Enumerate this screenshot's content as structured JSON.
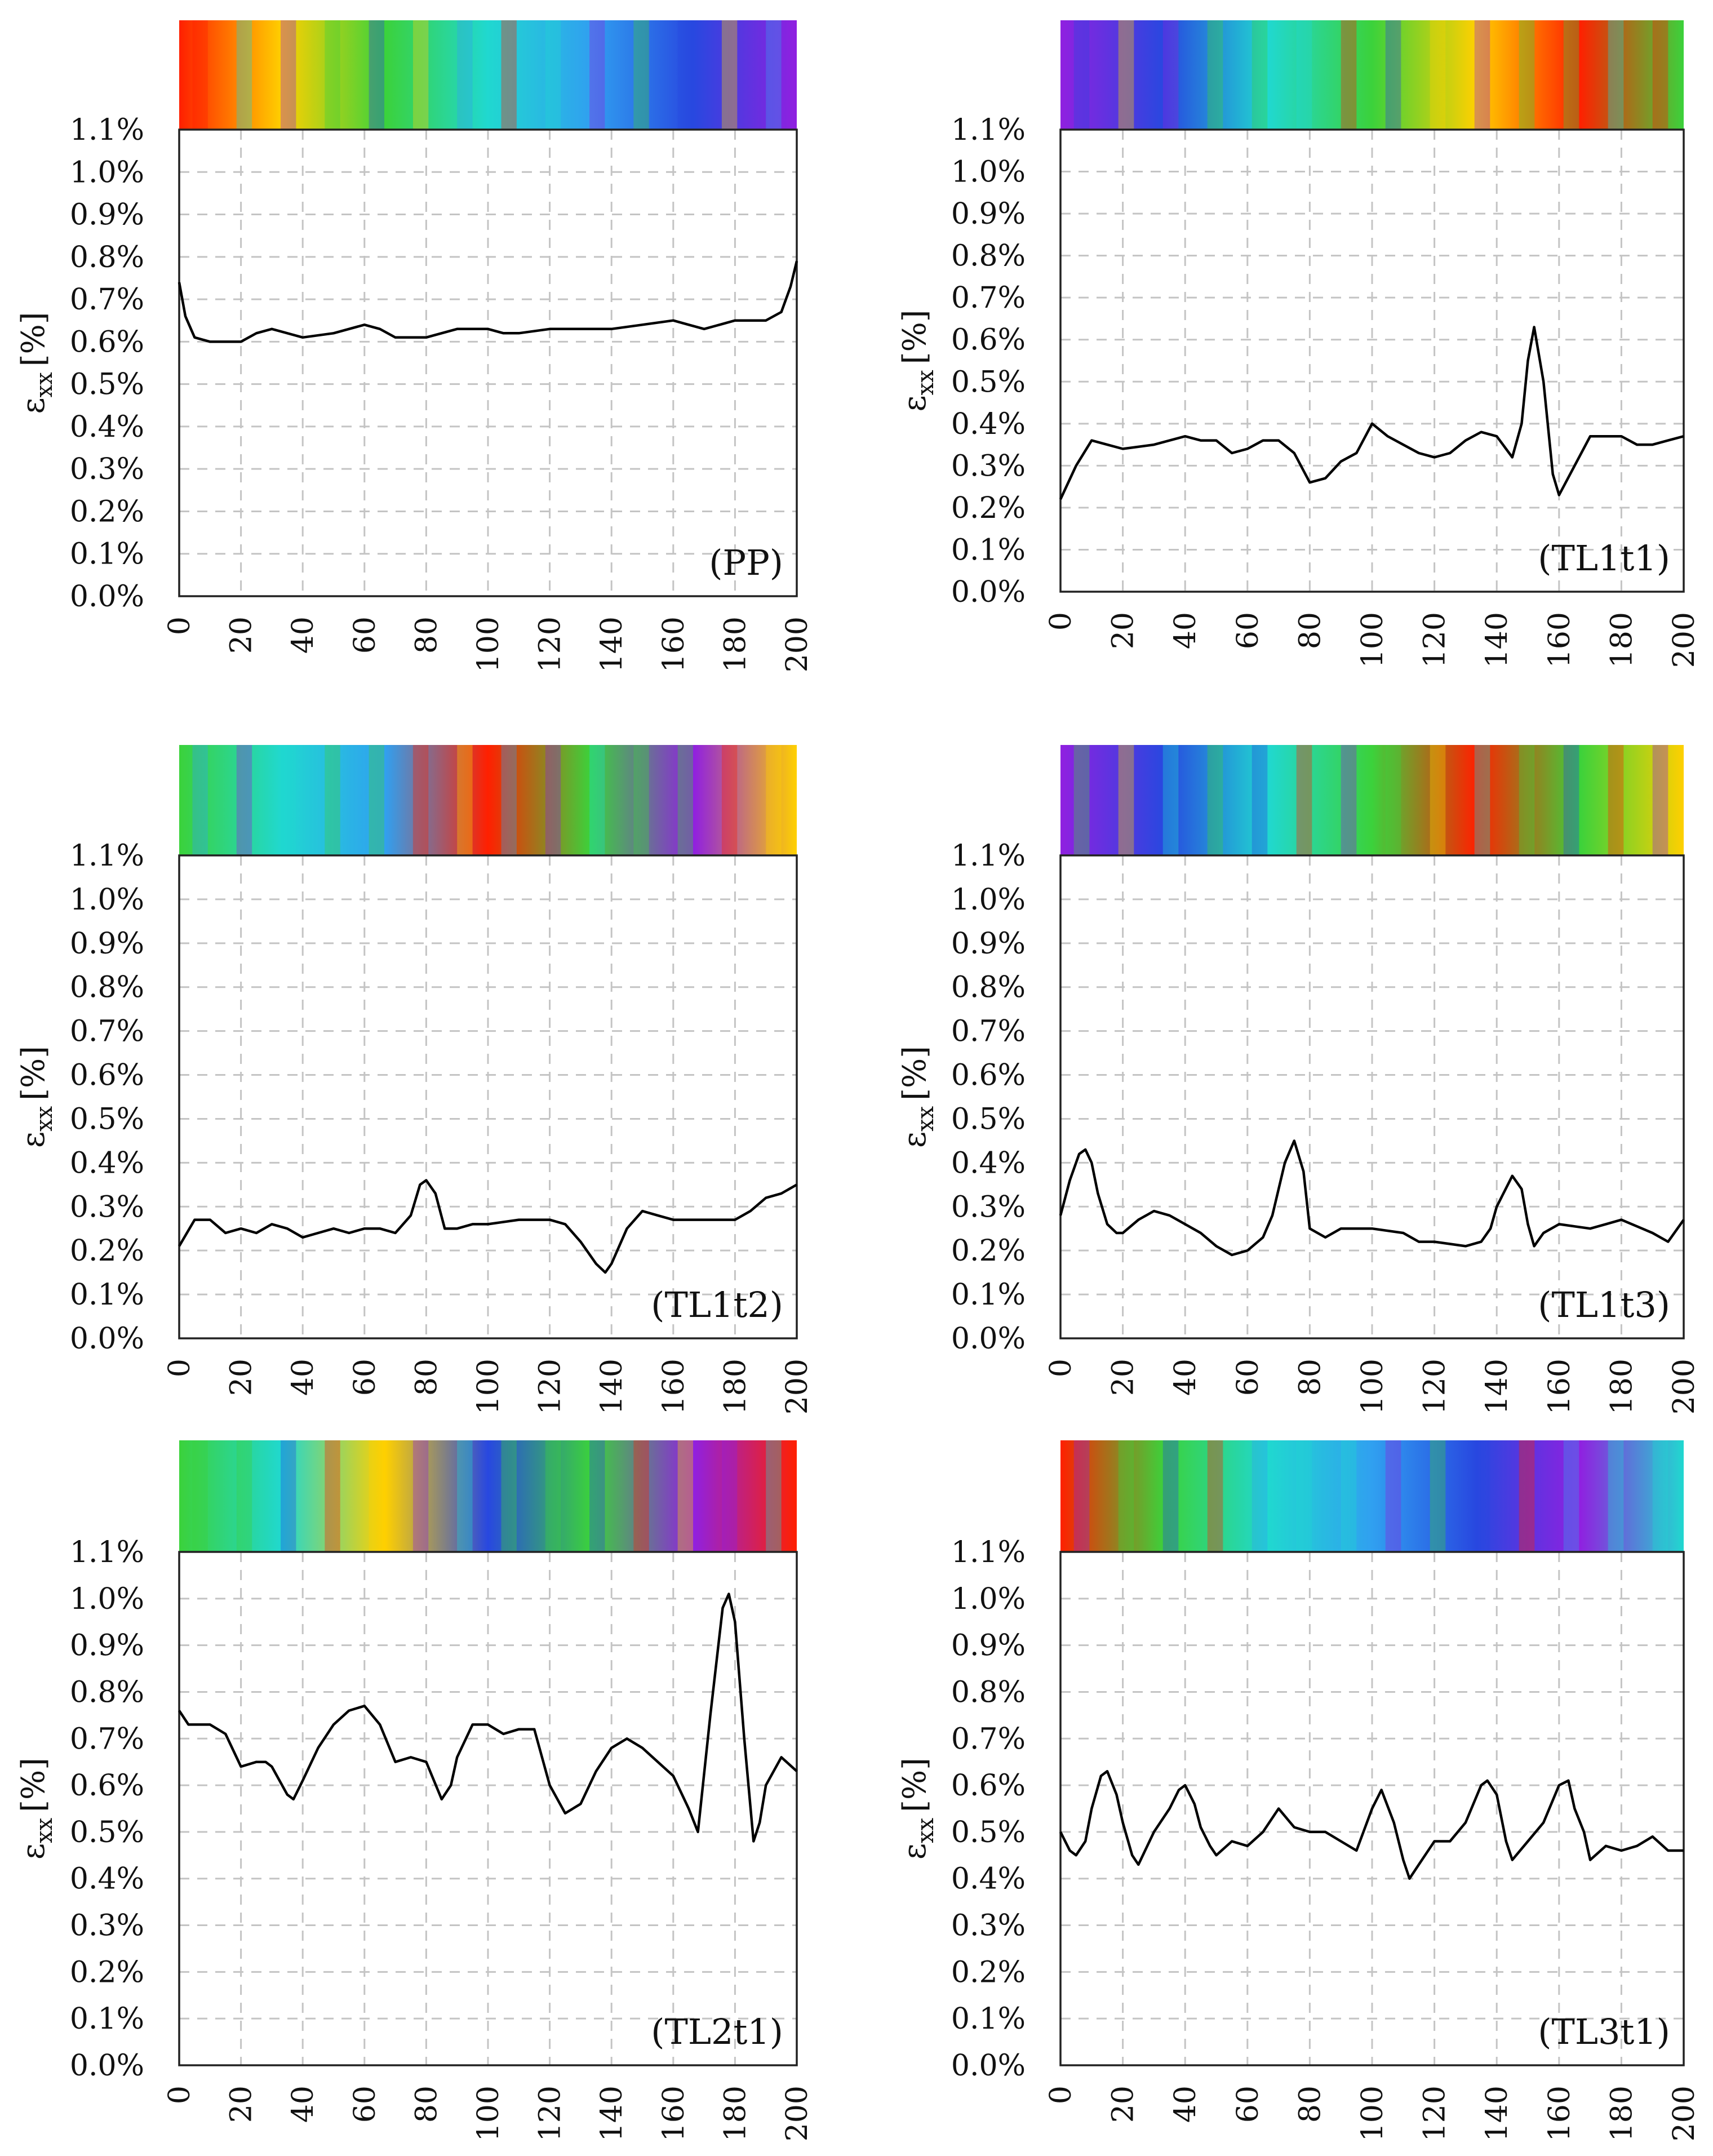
{
  "figure": {
    "panel_count": 6
  },
  "chart_data": [
    {
      "type": "line",
      "panel_label": "(PP)",
      "ylabel": "ε",
      "ylabel_sub": "xx",
      "ylabel_unit": "[%]",
      "xlim": [
        0,
        200
      ],
      "ylim": [
        0.0,
        1.1
      ],
      "x_ticks": [
        0,
        20,
        40,
        60,
        80,
        100,
        120,
        140,
        160,
        180,
        200
      ],
      "x_tick_labels": [
        "0",
        "20",
        "40",
        "60",
        "80",
        "100",
        "120",
        "140",
        "160",
        "180",
        "200"
      ],
      "y_ticks": [
        0.0,
        0.1,
        0.2,
        0.3,
        0.4,
        0.5,
        0.6,
        0.7,
        0.8,
        0.9,
        1.0,
        1.1
      ],
      "y_tick_labels": [
        "0.0%",
        "0.1%",
        "0.2%",
        "0.3%",
        "0.4%",
        "0.5%",
        "0.6%",
        "0.7%",
        "0.8%",
        "0.9%",
        "1.0%",
        "1.1%"
      ],
      "grid": true,
      "strain_map_colors": [
        "#ff2000",
        "#ffd000",
        "#3bd23b",
        "#20d8d0",
        "#30a0f0",
        "#2848e0",
        "#9020e0"
      ],
      "series": [
        {
          "name": "εxx",
          "x": [
            0,
            2,
            5,
            10,
            20,
            25,
            30,
            40,
            50,
            60,
            65,
            70,
            80,
            90,
            95,
            100,
            105,
            110,
            120,
            140,
            150,
            160,
            165,
            170,
            175,
            180,
            190,
            195,
            198,
            200
          ],
          "values": [
            0.74,
            0.66,
            0.61,
            0.6,
            0.6,
            0.62,
            0.63,
            0.61,
            0.62,
            0.64,
            0.63,
            0.61,
            0.61,
            0.63,
            0.63,
            0.63,
            0.62,
            0.62,
            0.63,
            0.63,
            0.64,
            0.65,
            0.64,
            0.63,
            0.64,
            0.65,
            0.65,
            0.67,
            0.73,
            0.79
          ]
        }
      ]
    },
    {
      "type": "line",
      "panel_label": "(TL1t1)",
      "ylabel": "ε",
      "ylabel_sub": "xx",
      "ylabel_unit": "[%]",
      "xlim": [
        0,
        200
      ],
      "ylim": [
        0.0,
        1.1
      ],
      "x_ticks": [
        0,
        20,
        40,
        60,
        80,
        100,
        120,
        140,
        160,
        180,
        200
      ],
      "x_tick_labels": [
        "0",
        "20",
        "40",
        "60",
        "80",
        "100",
        "120",
        "140",
        "160",
        "180",
        "200"
      ],
      "y_ticks": [
        0.0,
        0.1,
        0.2,
        0.3,
        0.4,
        0.5,
        0.6,
        0.7,
        0.8,
        0.9,
        1.0,
        1.1
      ],
      "y_tick_labels": [
        "0.0%",
        "0.1%",
        "0.2%",
        "0.3%",
        "0.4%",
        "0.5%",
        "0.6%",
        "0.7%",
        "0.8%",
        "0.9%",
        "1.0%",
        "1.1%"
      ],
      "grid": true,
      "strain_map_colors": [
        "#9020e0",
        "#2848e0",
        "#20d8d0",
        "#3bd23b",
        "#ffd000",
        "#ff2000",
        "#3bd23b"
      ],
      "series": [
        {
          "name": "εxx",
          "x": [
            0,
            5,
            10,
            15,
            20,
            30,
            40,
            45,
            50,
            55,
            60,
            65,
            70,
            75,
            80,
            85,
            90,
            95,
            100,
            105,
            110,
            115,
            120,
            125,
            130,
            135,
            140,
            145,
            148,
            150,
            152,
            155,
            158,
            160,
            165,
            170,
            175,
            180,
            185,
            190,
            195,
            200
          ],
          "values": [
            0.22,
            0.3,
            0.36,
            0.35,
            0.34,
            0.35,
            0.37,
            0.36,
            0.36,
            0.33,
            0.34,
            0.36,
            0.36,
            0.33,
            0.26,
            0.27,
            0.31,
            0.33,
            0.4,
            0.37,
            0.35,
            0.33,
            0.32,
            0.33,
            0.36,
            0.38,
            0.37,
            0.32,
            0.4,
            0.55,
            0.63,
            0.5,
            0.28,
            0.23,
            0.3,
            0.37,
            0.37,
            0.37,
            0.35,
            0.35,
            0.36,
            0.37
          ]
        }
      ]
    },
    {
      "type": "line",
      "panel_label": "(TL1t2)",
      "ylabel": "ε",
      "ylabel_sub": "xx",
      "ylabel_unit": "[%]",
      "xlim": [
        0,
        200
      ],
      "ylim": [
        0.0,
        1.1
      ],
      "x_ticks": [
        0,
        20,
        40,
        60,
        80,
        100,
        120,
        140,
        160,
        180,
        200
      ],
      "x_tick_labels": [
        "0",
        "20",
        "40",
        "60",
        "80",
        "100",
        "120",
        "140",
        "160",
        "180",
        "200"
      ],
      "y_ticks": [
        0.0,
        0.1,
        0.2,
        0.3,
        0.4,
        0.5,
        0.6,
        0.7,
        0.8,
        0.9,
        1.0,
        1.1
      ],
      "y_tick_labels": [
        "0.0%",
        "0.1%",
        "0.2%",
        "0.3%",
        "0.4%",
        "0.5%",
        "0.6%",
        "0.7%",
        "0.8%",
        "0.9%",
        "1.0%",
        "1.1%"
      ],
      "grid": true,
      "strain_map_colors": [
        "#3bd23b",
        "#20d8d0",
        "#30a0f0",
        "#ff2000",
        "#3bd23b",
        "#9020e0",
        "#ffd000"
      ],
      "series": [
        {
          "name": "εxx",
          "x": [
            0,
            5,
            10,
            15,
            20,
            25,
            30,
            35,
            40,
            45,
            50,
            55,
            60,
            65,
            70,
            75,
            78,
            80,
            83,
            86,
            90,
            95,
            100,
            110,
            120,
            125,
            130,
            135,
            138,
            140,
            145,
            150,
            155,
            160,
            170,
            180,
            185,
            190,
            195,
            200
          ],
          "values": [
            0.21,
            0.27,
            0.27,
            0.24,
            0.25,
            0.24,
            0.26,
            0.25,
            0.23,
            0.24,
            0.25,
            0.24,
            0.25,
            0.25,
            0.24,
            0.28,
            0.35,
            0.36,
            0.33,
            0.25,
            0.25,
            0.26,
            0.26,
            0.27,
            0.27,
            0.26,
            0.22,
            0.17,
            0.15,
            0.17,
            0.25,
            0.29,
            0.28,
            0.27,
            0.27,
            0.27,
            0.29,
            0.32,
            0.33,
            0.35
          ]
        }
      ]
    },
    {
      "type": "line",
      "panel_label": "(TL1t3)",
      "ylabel": "ε",
      "ylabel_sub": "xx",
      "ylabel_unit": "[%]",
      "xlim": [
        0,
        200
      ],
      "ylim": [
        0.0,
        1.1
      ],
      "x_ticks": [
        0,
        20,
        40,
        60,
        80,
        100,
        120,
        140,
        160,
        180,
        200
      ],
      "x_tick_labels": [
        "0",
        "20",
        "40",
        "60",
        "80",
        "100",
        "120",
        "140",
        "160",
        "180",
        "200"
      ],
      "y_ticks": [
        0.0,
        0.1,
        0.2,
        0.3,
        0.4,
        0.5,
        0.6,
        0.7,
        0.8,
        0.9,
        1.0,
        1.1
      ],
      "y_tick_labels": [
        "0.0%",
        "0.1%",
        "0.2%",
        "0.3%",
        "0.4%",
        "0.5%",
        "0.6%",
        "0.7%",
        "0.8%",
        "0.9%",
        "1.0%",
        "1.1%"
      ],
      "grid": true,
      "strain_map_colors": [
        "#9020e0",
        "#2848e0",
        "#20d8d0",
        "#3bd23b",
        "#ff2000",
        "#3bd23b",
        "#ffd000"
      ],
      "series": [
        {
          "name": "εxx",
          "x": [
            0,
            3,
            6,
            8,
            10,
            12,
            15,
            18,
            20,
            25,
            30,
            35,
            40,
            45,
            50,
            55,
            60,
            65,
            68,
            72,
            75,
            78,
            80,
            85,
            90,
            95,
            100,
            110,
            115,
            120,
            130,
            135,
            138,
            140,
            145,
            148,
            150,
            152,
            155,
            160,
            170,
            175,
            180,
            190,
            195,
            200
          ],
          "values": [
            0.28,
            0.36,
            0.42,
            0.43,
            0.4,
            0.33,
            0.26,
            0.24,
            0.24,
            0.27,
            0.29,
            0.28,
            0.26,
            0.24,
            0.21,
            0.19,
            0.2,
            0.23,
            0.28,
            0.4,
            0.45,
            0.38,
            0.25,
            0.23,
            0.25,
            0.25,
            0.25,
            0.24,
            0.22,
            0.22,
            0.21,
            0.22,
            0.25,
            0.3,
            0.37,
            0.34,
            0.26,
            0.21,
            0.24,
            0.26,
            0.25,
            0.26,
            0.27,
            0.24,
            0.22,
            0.27
          ]
        }
      ]
    },
    {
      "type": "line",
      "panel_label": "(TL2t1)",
      "ylabel": "ε",
      "ylabel_sub": "xx",
      "ylabel_unit": "[%]",
      "xlim": [
        0,
        200
      ],
      "ylim": [
        0.0,
        1.1
      ],
      "x_ticks": [
        0,
        20,
        40,
        60,
        80,
        100,
        120,
        140,
        160,
        180,
        200
      ],
      "x_tick_labels": [
        "0",
        "20",
        "40",
        "60",
        "80",
        "100",
        "120",
        "140",
        "160",
        "180",
        "200"
      ],
      "y_ticks": [
        0.0,
        0.1,
        0.2,
        0.3,
        0.4,
        0.5,
        0.6,
        0.7,
        0.8,
        0.9,
        1.0,
        1.1
      ],
      "y_tick_labels": [
        "0.0%",
        "0.1%",
        "0.2%",
        "0.3%",
        "0.4%",
        "0.5%",
        "0.6%",
        "0.7%",
        "0.8%",
        "0.9%",
        "1.0%",
        "1.1%"
      ],
      "grid": true,
      "strain_map_colors": [
        "#3bd23b",
        "#20d8d0",
        "#ffd000",
        "#2848e0",
        "#3bd23b",
        "#9020e0",
        "#ff2000"
      ],
      "series": [
        {
          "name": "εxx",
          "x": [
            0,
            3,
            5,
            10,
            15,
            20,
            25,
            28,
            30,
            35,
            37,
            40,
            45,
            50,
            55,
            60,
            65,
            70,
            75,
            80,
            85,
            88,
            90,
            95,
            100,
            105,
            110,
            115,
            120,
            125,
            130,
            135,
            140,
            145,
            150,
            155,
            160,
            165,
            168,
            172,
            176,
            178,
            180,
            183,
            186,
            188,
            190,
            195,
            200
          ],
          "values": [
            0.76,
            0.73,
            0.73,
            0.73,
            0.71,
            0.64,
            0.65,
            0.65,
            0.64,
            0.58,
            0.57,
            0.61,
            0.68,
            0.73,
            0.76,
            0.77,
            0.73,
            0.65,
            0.66,
            0.65,
            0.57,
            0.6,
            0.66,
            0.73,
            0.73,
            0.71,
            0.72,
            0.72,
            0.6,
            0.54,
            0.56,
            0.63,
            0.68,
            0.7,
            0.68,
            0.65,
            0.62,
            0.55,
            0.5,
            0.75,
            0.98,
            1.01,
            0.95,
            0.7,
            0.48,
            0.52,
            0.6,
            0.66,
            0.63
          ]
        }
      ]
    },
    {
      "type": "line",
      "panel_label": "(TL3t1)",
      "ylabel": "ε",
      "ylabel_sub": "xx",
      "ylabel_unit": "[%]",
      "xlim": [
        0,
        200
      ],
      "ylim": [
        0.0,
        1.1
      ],
      "x_ticks": [
        0,
        20,
        40,
        60,
        80,
        100,
        120,
        140,
        160,
        180,
        200
      ],
      "x_tick_labels": [
        "0",
        "20",
        "40",
        "60",
        "80",
        "100",
        "120",
        "140",
        "160",
        "180",
        "200"
      ],
      "y_ticks": [
        0.0,
        0.1,
        0.2,
        0.3,
        0.4,
        0.5,
        0.6,
        0.7,
        0.8,
        0.9,
        1.0,
        1.1
      ],
      "y_tick_labels": [
        "0.0%",
        "0.1%",
        "0.2%",
        "0.3%",
        "0.4%",
        "0.5%",
        "0.6%",
        "0.7%",
        "0.8%",
        "0.9%",
        "1.0%",
        "1.1%"
      ],
      "grid": true,
      "strain_map_colors": [
        "#ff2000",
        "#3bd23b",
        "#20d8d0",
        "#30a0f0",
        "#2848e0",
        "#9020e0",
        "#20d8d0"
      ],
      "series": [
        {
          "name": "εxx",
          "x": [
            0,
            3,
            5,
            8,
            10,
            13,
            15,
            18,
            20,
            23,
            25,
            30,
            35,
            38,
            40,
            43,
            45,
            48,
            50,
            55,
            60,
            65,
            70,
            75,
            80,
            85,
            90,
            95,
            100,
            103,
            107,
            110,
            112,
            115,
            120,
            125,
            130,
            135,
            137,
            140,
            143,
            145,
            150,
            155,
            160,
            163,
            165,
            168,
            170,
            175,
            180,
            185,
            190,
            195,
            200
          ],
          "values": [
            0.5,
            0.46,
            0.45,
            0.48,
            0.55,
            0.62,
            0.63,
            0.58,
            0.52,
            0.45,
            0.43,
            0.5,
            0.55,
            0.59,
            0.6,
            0.56,
            0.51,
            0.47,
            0.45,
            0.48,
            0.47,
            0.5,
            0.55,
            0.51,
            0.5,
            0.5,
            0.48,
            0.46,
            0.55,
            0.59,
            0.52,
            0.44,
            0.4,
            0.43,
            0.48,
            0.48,
            0.52,
            0.6,
            0.61,
            0.58,
            0.48,
            0.44,
            0.48,
            0.52,
            0.6,
            0.61,
            0.55,
            0.5,
            0.44,
            0.47,
            0.46,
            0.47,
            0.49,
            0.46,
            0.46
          ]
        }
      ]
    }
  ]
}
